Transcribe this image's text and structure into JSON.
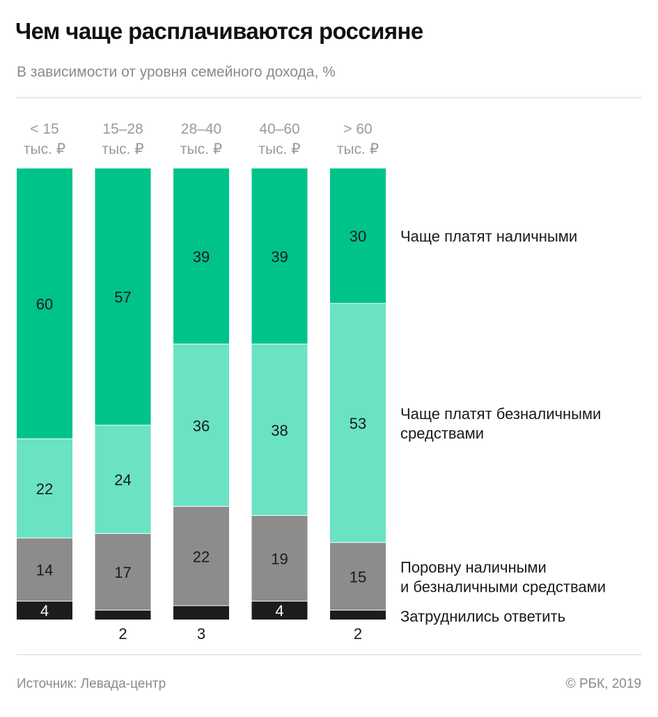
{
  "header": {
    "title": "Чем чаще расплачиваются россияне",
    "subtitle": "В зависимости от уровня семейного дохода, %"
  },
  "footer": {
    "source": "Источник: Левада-центр",
    "copyright": "© РБК, 2019"
  },
  "colors": {
    "cash": "#00c389",
    "cashless": "#6ae2c4",
    "equal": "#8c8c8c",
    "dont_know": "#1c1c1c"
  },
  "chart_data": {
    "type": "bar",
    "stacked": true,
    "title": "Чем чаще расплачиваются россияне",
    "subtitle": "В зависимости от уровня семейного дохода, %",
    "categories": [
      [
        "< 15",
        "тыс. ₽"
      ],
      [
        "15–28",
        "тыс. ₽"
      ],
      [
        "28–40",
        "тыс. ₽"
      ],
      [
        "40–60",
        "тыс. ₽"
      ],
      [
        "> 60",
        "тыс. ₽"
      ]
    ],
    "series": [
      {
        "name": "Чаще платят наличными",
        "name_lines": [
          "Чаще платят наличными"
        ],
        "values": [
          60,
          57,
          39,
          39,
          30
        ],
        "color_key": "cash"
      },
      {
        "name": "Чаще платят безналичными средствами",
        "name_lines": [
          "Чаще платят безналичными",
          "средствами"
        ],
        "values": [
          22,
          24,
          36,
          38,
          53
        ],
        "color_key": "cashless"
      },
      {
        "name": "Поровну наличными и безналичными средствами",
        "name_lines": [
          "Поровну наличными",
          "и безналичными средствами"
        ],
        "values": [
          14,
          17,
          22,
          19,
          15
        ],
        "color_key": "equal"
      },
      {
        "name": "Затруднились ответить",
        "name_lines": [
          "Затруднились ответить"
        ],
        "values": [
          4,
          2,
          3,
          4,
          2
        ],
        "color_key": "dont_know"
      }
    ],
    "ylim": [
      0,
      100
    ],
    "legend_placement": "right",
    "grid": false
  }
}
